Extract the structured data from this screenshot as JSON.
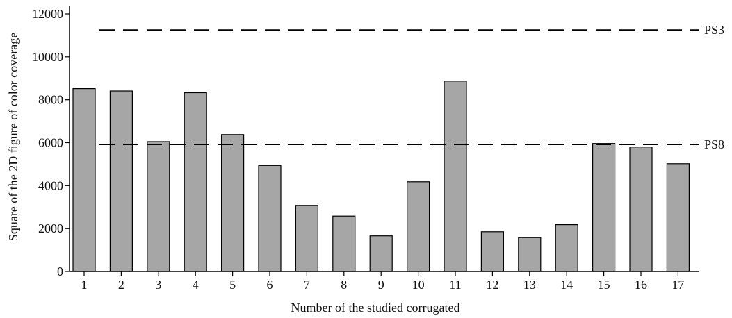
{
  "chart_data": {
    "type": "bar",
    "categories": [
      "1",
      "2",
      "3",
      "4",
      "5",
      "6",
      "7",
      "8",
      "9",
      "10",
      "11",
      "12",
      "13",
      "14",
      "15",
      "16",
      "17"
    ],
    "values": [
      8520,
      8410,
      6050,
      8330,
      6380,
      4940,
      3080,
      2580,
      1660,
      4180,
      8870,
      1850,
      1580,
      2180,
      5960,
      5800,
      5020
    ],
    "xlabel": "Number of the studied corrugated",
    "ylabel": "Square of the 2D figure of color coverage",
    "ylim": [
      0,
      12000
    ],
    "yticks": [
      0,
      2000,
      4000,
      6000,
      8000,
      10000,
      12000
    ],
    "reference_lines": [
      {
        "label": "PS3",
        "value": 11250
      },
      {
        "label": "PS8",
        "value": 5920
      }
    ],
    "bar_color": "#a6a6a6",
    "grid": false
  }
}
